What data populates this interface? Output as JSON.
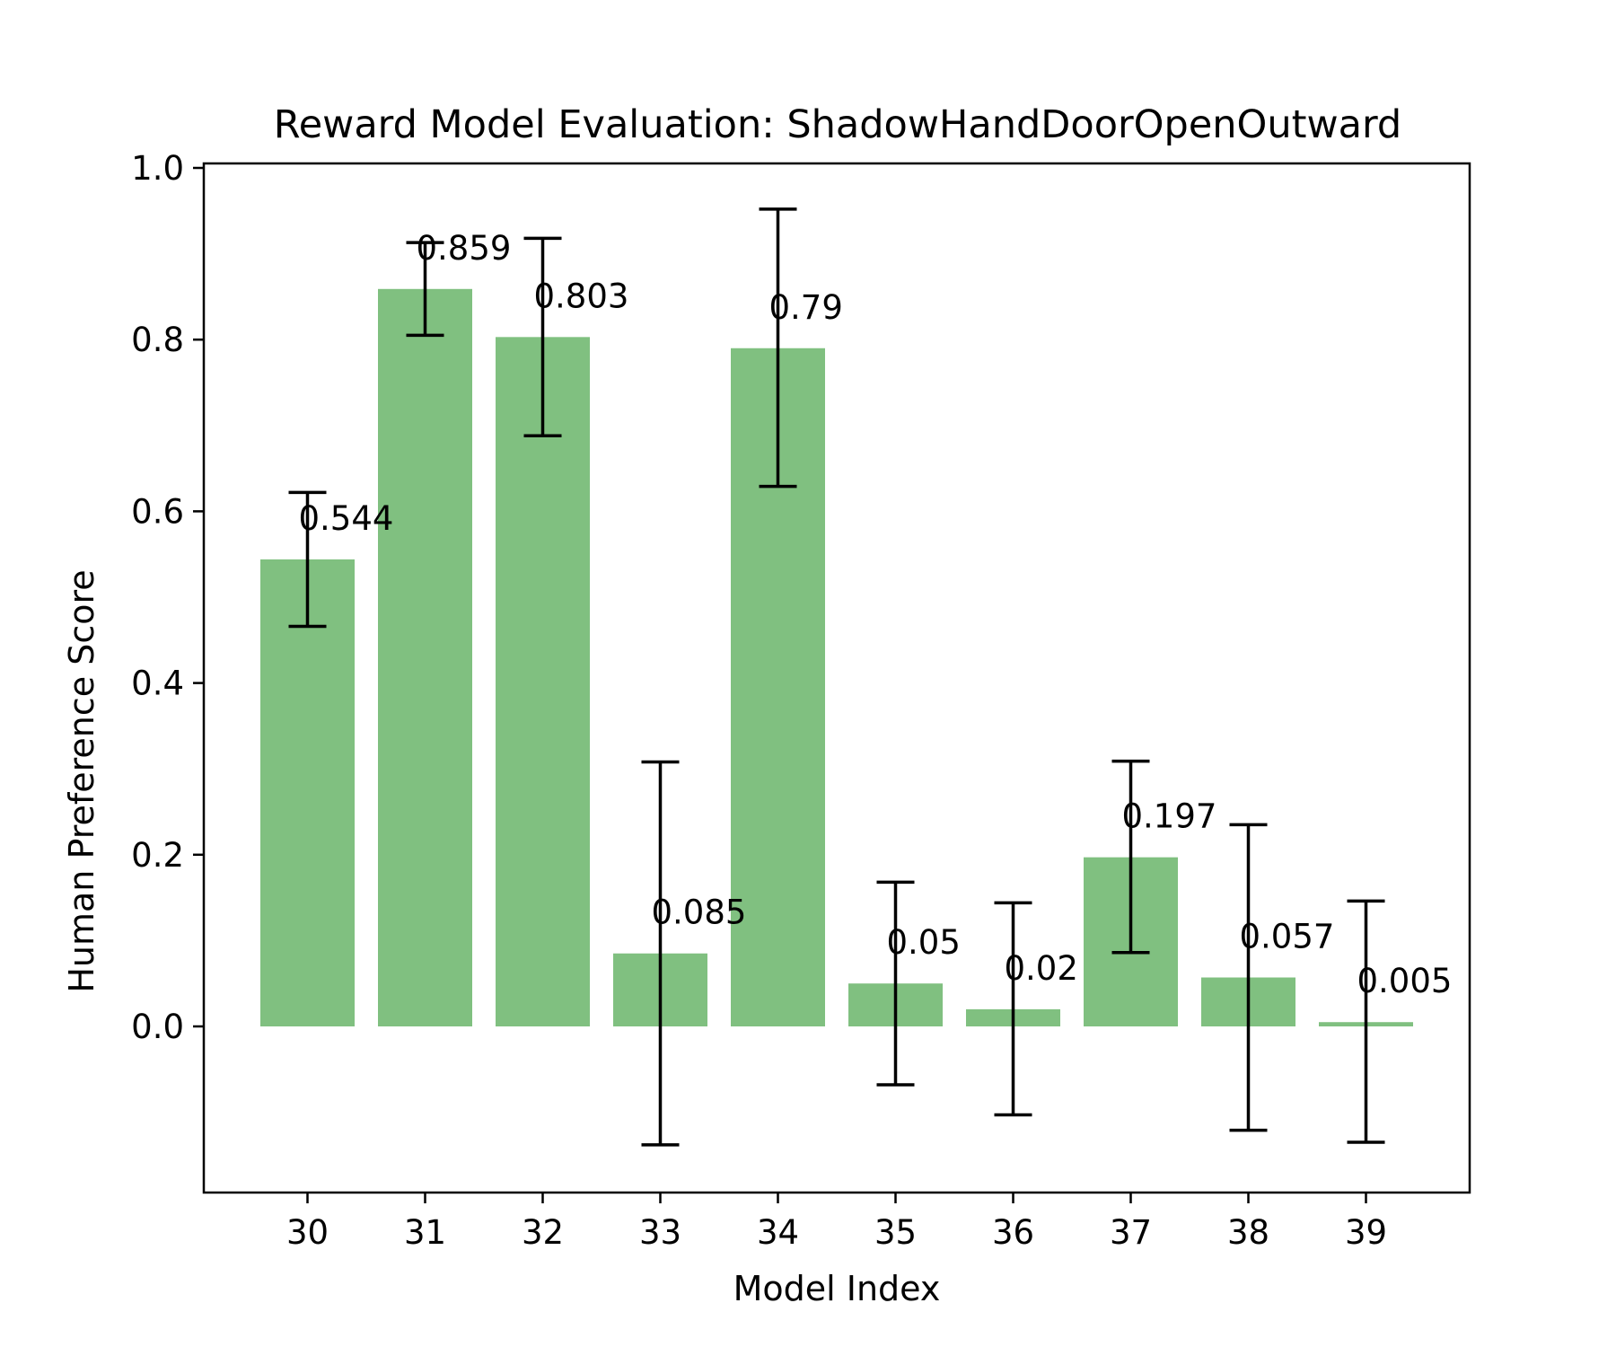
{
  "chart_data": {
    "type": "bar",
    "title": "Reward Model Evaluation: ShadowHandDoorOpenOutward",
    "xlabel": "Model Index",
    "ylabel": "Human Preference Score",
    "categories": [
      "30",
      "31",
      "32",
      "33",
      "34",
      "35",
      "36",
      "37",
      "38",
      "39"
    ],
    "values": [
      0.544,
      0.859,
      0.803,
      0.085,
      0.79,
      0.05,
      0.02,
      0.197,
      0.057,
      0.005
    ],
    "value_labels": [
      "0.544",
      "0.859",
      "0.803",
      "0.085",
      "0.79",
      "0.05",
      "0.02",
      "0.197",
      "0.057",
      "0.005"
    ],
    "error_low": [
      0.466,
      0.805,
      0.688,
      -0.138,
      0.629,
      -0.068,
      -0.103,
      0.086,
      -0.121,
      -0.135
    ],
    "error_high": [
      0.622,
      0.913,
      0.918,
      0.308,
      0.952,
      0.168,
      0.144,
      0.309,
      0.235,
      0.146
    ],
    "ylim": [
      -0.193,
      1.0
    ],
    "yticks": [
      0.0,
      0.2,
      0.4,
      0.6,
      0.8,
      1.0
    ],
    "ytick_labels": [
      "0.0",
      "0.2",
      "0.4",
      "0.6",
      "0.8",
      "1.0"
    ],
    "grid": false,
    "colors": {
      "bar": "#80c080",
      "error": "#000000",
      "frame": "#000000"
    }
  }
}
